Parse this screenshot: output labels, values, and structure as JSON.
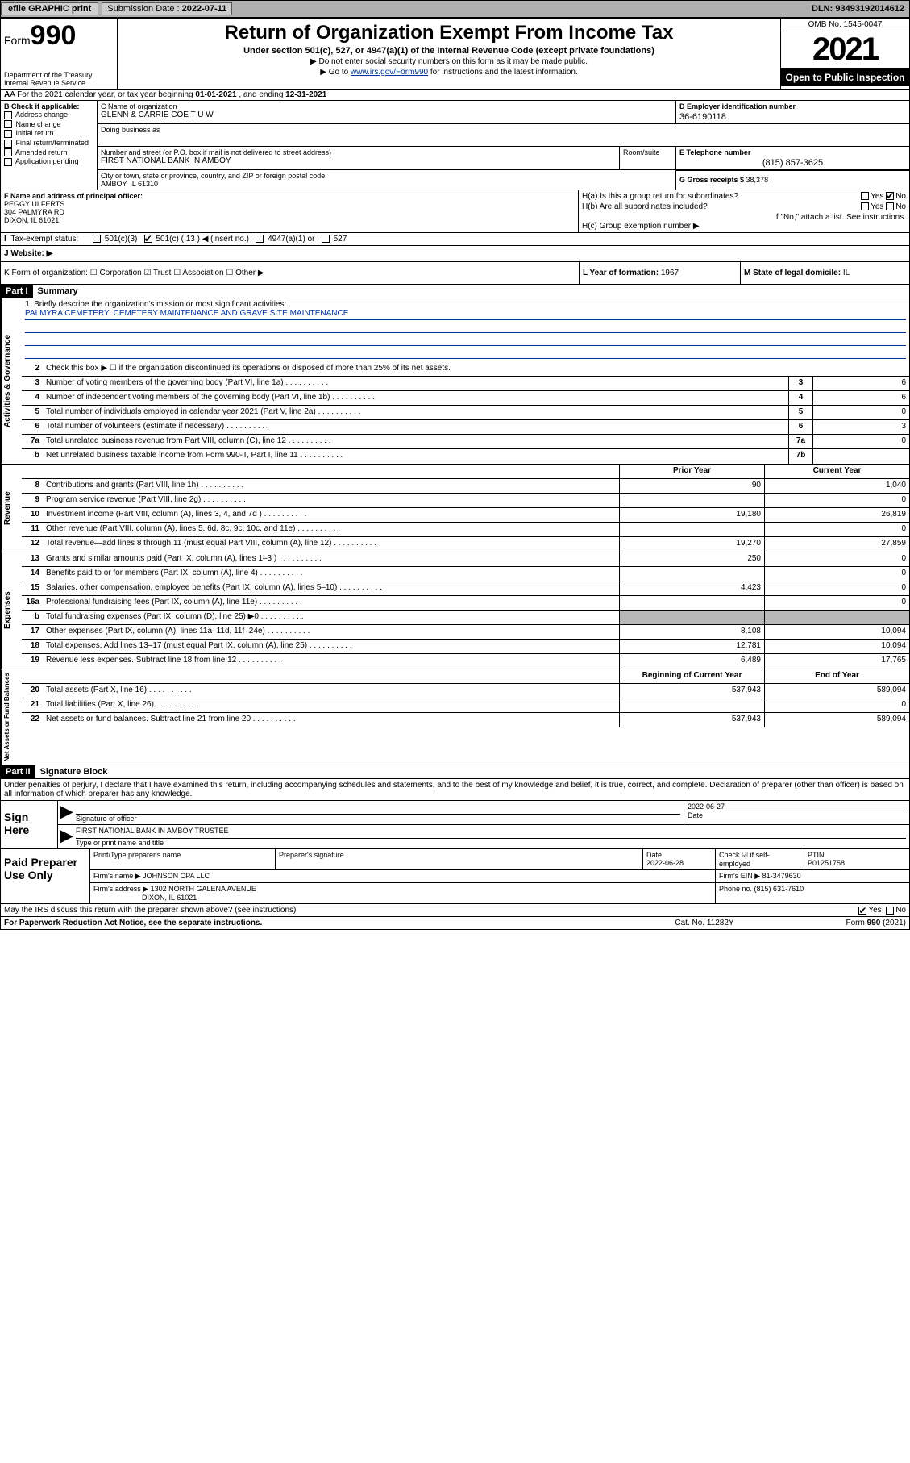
{
  "topbar": {
    "efile": "efile GRAPHIC print",
    "submission_label": "Submission Date : ",
    "submission_date": "2022-07-11",
    "dln": "DLN: 93493192014612"
  },
  "header": {
    "form_prefix": "Form",
    "form_no": "990",
    "dept": "Department of the Treasury\nInternal Revenue Service",
    "title": "Return of Organization Exempt From Income Tax",
    "sub": "Under section 501(c), 527, or 4947(a)(1) of the Internal Revenue Code (except private foundations)",
    "note1": "▶ Do not enter social security numbers on this form as it may be made public.",
    "note2_pre": "▶ Go to ",
    "note2_link": "www.irs.gov/Form990",
    "note2_post": " for instructions and the latest information.",
    "omb": "OMB No. 1545-0047",
    "year": "2021",
    "otp": "Open to Public Inspection"
  },
  "rowA": {
    "text_pre": "A For the 2021 calendar year, or tax year beginning ",
    "begin": "01-01-2021",
    "mid": " , and ending ",
    "end": "12-31-2021"
  },
  "colB": {
    "label": "B Check if applicable:",
    "items": [
      "Address change",
      "Name change",
      "Initial return",
      "Final return/terminated",
      "Amended return",
      "Application pending"
    ]
  },
  "colC": {
    "name_label": "C Name of organization",
    "name": "GLENN & CARRIE COE T U W",
    "dba_label": "Doing business as",
    "addr_label": "Number and street (or P.O. box if mail is not delivered to street address)",
    "addr": "FIRST NATIONAL BANK IN AMBOY",
    "room_label": "Room/suite",
    "city_label": "City or town, state or province, country, and ZIP or foreign postal code",
    "city": "AMBOY, IL  61310"
  },
  "colD": {
    "label": "D Employer identification number",
    "val": "36-6190118"
  },
  "colE": {
    "label": "E Telephone number",
    "val": "(815) 857-3625"
  },
  "colG": {
    "label": "G Gross receipts $ ",
    "val": "38,378"
  },
  "colF": {
    "label": "F Name and address of principal officer:",
    "line1": "PEGGY ULFERTS",
    "line2": "304 PALMYRA RD",
    "line3": "DIXON, IL  61021"
  },
  "colH": {
    "a": "H(a)  Is this a group return for subordinates?",
    "a_yes": "Yes",
    "a_no": "No",
    "b": "H(b)  Are all subordinates included?",
    "b_yes": "Yes",
    "b_no": "No",
    "b_note": "If \"No,\" attach a list. See instructions.",
    "c": "H(c)  Group exemption number ▶"
  },
  "rowI": {
    "label": "Tax-exempt status:",
    "opts": [
      "501(c)(3)",
      "501(c) ( 13 ) ◀ (insert no.)",
      "4947(a)(1) or",
      "527"
    ],
    "checked_index": 1
  },
  "rowJ": {
    "label": "J  Website: ▶",
    "val": ""
  },
  "rowK": {
    "k1": "K Form of organization:   ☐ Corporation  ☑ Trust  ☐ Association  ☐ Other ▶",
    "k2_label": "L Year of formation: ",
    "k2_val": "1967",
    "k3_label": "M State of legal domicile: ",
    "k3_val": "IL"
  },
  "part1": {
    "hdr": "Part I",
    "title": "Summary"
  },
  "mission": {
    "num": "1",
    "label": "Briefly describe the organization's mission or most significant activities:",
    "text": "PALMYRA CEMETERY: CEMETERY MAINTENANCE AND GRAVE SITE MAINTENANCE"
  },
  "gov_lines": [
    {
      "n": "2",
      "t": "Check this box ▶ ☐  if the organization discontinued its operations or disposed of more than 25% of its net assets.",
      "box": "",
      "v": ""
    },
    {
      "n": "3",
      "t": "Number of voting members of the governing body (Part VI, line 1a)",
      "box": "3",
      "v": "6"
    },
    {
      "n": "4",
      "t": "Number of independent voting members of the governing body (Part VI, line 1b)",
      "box": "4",
      "v": "6"
    },
    {
      "n": "5",
      "t": "Total number of individuals employed in calendar year 2021 (Part V, line 2a)",
      "box": "5",
      "v": "0"
    },
    {
      "n": "6",
      "t": "Total number of volunteers (estimate if necessary)",
      "box": "6",
      "v": "3"
    },
    {
      "n": "7a",
      "t": "Total unrelated business revenue from Part VIII, column (C), line 12",
      "box": "7a",
      "v": "0"
    },
    {
      "n": "b",
      "t": "Net unrelated business taxable income from Form 990-T, Part I, line 11",
      "box": "7b",
      "v": ""
    }
  ],
  "rev_hdr": {
    "prior": "Prior Year",
    "curr": "Current Year"
  },
  "rev_lines": [
    {
      "n": "8",
      "t": "Contributions and grants (Part VIII, line 1h)",
      "p": "90",
      "c": "1,040"
    },
    {
      "n": "9",
      "t": "Program service revenue (Part VIII, line 2g)",
      "p": "",
      "c": "0"
    },
    {
      "n": "10",
      "t": "Investment income (Part VIII, column (A), lines 3, 4, and 7d )",
      "p": "19,180",
      "c": "26,819"
    },
    {
      "n": "11",
      "t": "Other revenue (Part VIII, column (A), lines 5, 6d, 8c, 9c, 10c, and 11e)",
      "p": "",
      "c": "0"
    },
    {
      "n": "12",
      "t": "Total revenue—add lines 8 through 11 (must equal Part VIII, column (A), line 12)",
      "p": "19,270",
      "c": "27,859"
    }
  ],
  "exp_lines": [
    {
      "n": "13",
      "t": "Grants and similar amounts paid (Part IX, column (A), lines 1–3 )",
      "p": "250",
      "c": "0"
    },
    {
      "n": "14",
      "t": "Benefits paid to or for members (Part IX, column (A), line 4)",
      "p": "",
      "c": "0"
    },
    {
      "n": "15",
      "t": "Salaries, other compensation, employee benefits (Part IX, column (A), lines 5–10)",
      "p": "4,423",
      "c": "0"
    },
    {
      "n": "16a",
      "t": "Professional fundraising fees (Part IX, column (A), line 11e)",
      "p": "",
      "c": "0"
    },
    {
      "n": "b",
      "t": "Total fundraising expenses (Part IX, column (D), line 25) ▶0",
      "p": "shaded",
      "c": "shaded"
    },
    {
      "n": "17",
      "t": "Other expenses (Part IX, column (A), lines 11a–11d, 11f–24e)",
      "p": "8,108",
      "c": "10,094"
    },
    {
      "n": "18",
      "t": "Total expenses. Add lines 13–17 (must equal Part IX, column (A), line 25)",
      "p": "12,781",
      "c": "10,094"
    },
    {
      "n": "19",
      "t": "Revenue less expenses. Subtract line 18 from line 12",
      "p": "6,489",
      "c": "17,765"
    }
  ],
  "net_hdr": {
    "prior": "Beginning of Current Year",
    "curr": "End of Year"
  },
  "net_lines": [
    {
      "n": "20",
      "t": "Total assets (Part X, line 16)",
      "p": "537,943",
      "c": "589,094"
    },
    {
      "n": "21",
      "t": "Total liabilities (Part X, line 26)",
      "p": "",
      "c": "0"
    },
    {
      "n": "22",
      "t": "Net assets or fund balances. Subtract line 21 from line 20",
      "p": "537,943",
      "c": "589,094"
    }
  ],
  "part2": {
    "hdr": "Part II",
    "title": "Signature Block"
  },
  "sig_decl": "Under penalties of perjury, I declare that I have examined this return, including accompanying schedules and statements, and to the best of my knowledge and belief, it is true, correct, and complete. Declaration of preparer (other than officer) is based on all information of which preparer has any knowledge.",
  "sign": {
    "label": "Sign Here",
    "sig_label": "Signature of officer",
    "date_label": "Date",
    "date": "2022-06-27",
    "name": "FIRST NATIONAL BANK IN AMBOY TRUSTEE",
    "name_label": "Type or print name and title"
  },
  "paid": {
    "label": "Paid Preparer Use Only",
    "r1": {
      "c1": "Print/Type preparer's name",
      "c2": "Preparer's signature",
      "c3": "Date",
      "c3v": "2022-06-28",
      "c4": "Check ☑ if self-employed",
      "c5": "PTIN",
      "c5v": "P01251758"
    },
    "r2": {
      "c1": "Firm's name    ▶ ",
      "c1v": "JOHNSON CPA LLC",
      "c2": "Firm's EIN ▶ ",
      "c2v": "81-3479630"
    },
    "r3": {
      "c1": "Firm's address ▶ ",
      "c1v": "1302 NORTH GALENA AVENUE",
      "c1v2": "DIXON, IL  61021",
      "c2": "Phone no. ",
      "c2v": "(815) 631-7610"
    }
  },
  "footer": {
    "discuss": "May the IRS discuss this return with the preparer shown above? (see instructions)",
    "yes": "Yes",
    "no": "No",
    "pra": "For Paperwork Reduction Act Notice, see the separate instructions.",
    "cat": "Cat. No. 11282Y",
    "form": "Form 990 (2021)"
  },
  "vtabs": {
    "gov": "Activities & Governance",
    "rev": "Revenue",
    "exp": "Expenses",
    "net": "Net Assets or Fund Balances"
  }
}
